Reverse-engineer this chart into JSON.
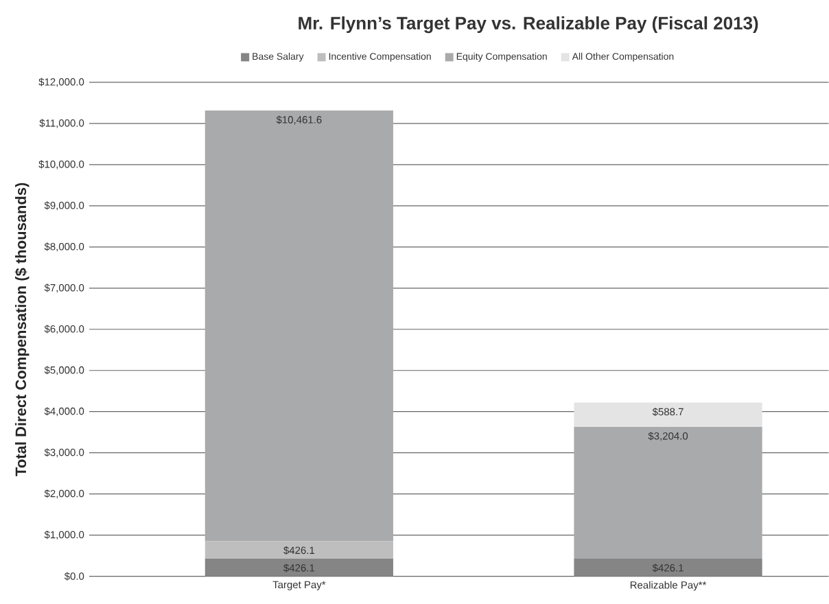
{
  "chart_data": {
    "type": "bar",
    "stacked": true,
    "title": "Mr. Flynn’s Target Pay vs. Realizable Pay (Fiscal 2013)",
    "ylabel": "Total Direct Compensation ($ thousands)",
    "categories": [
      "Target Pay*",
      "Realizable Pay**"
    ],
    "series": [
      {
        "name": "Base Salary",
        "color": "#858585",
        "values": [
          426.1,
          426.1
        ],
        "value_labels": [
          "$426.1",
          "$426.1"
        ]
      },
      {
        "name": "Incentive Compensation",
        "color": "#bebebe",
        "values": [
          426.1,
          0
        ],
        "value_labels": [
          "$426.1",
          null
        ]
      },
      {
        "name": "Equity Compensation",
        "color": "#a9aaab",
        "values": [
          10461.6,
          3204.0
        ],
        "value_labels": [
          "$10,461.6",
          "$3,204.0"
        ]
      },
      {
        "name": "All Other Compensation",
        "color": "#e4e4e5",
        "values": [
          0,
          588.7
        ],
        "value_labels": [
          null,
          "$588.7"
        ]
      }
    ],
    "ylim": [
      0,
      12000
    ],
    "yticks": [
      {
        "value": 0,
        "label": "$0.0"
      },
      {
        "value": 1000,
        "label": "$1,000.0"
      },
      {
        "value": 2000,
        "label": "$2,000.0"
      },
      {
        "value": 3000,
        "label": "$3,000.0"
      },
      {
        "value": 4000,
        "label": "$4,000.0"
      },
      {
        "value": 5000,
        "label": "$5,000.0"
      },
      {
        "value": 6000,
        "label": "$6,000.0"
      },
      {
        "value": 7000,
        "label": "$7,000.0"
      },
      {
        "value": 8000,
        "label": "$8,000.0"
      },
      {
        "value": 9000,
        "label": "$9,000.0"
      },
      {
        "value": 10000,
        "label": "$10,000.0"
      },
      {
        "value": 11000,
        "label": "$11,000.0"
      },
      {
        "value": 12000,
        "label": "$12,000.0"
      }
    ],
    "grid": "y",
    "legend": "top"
  }
}
